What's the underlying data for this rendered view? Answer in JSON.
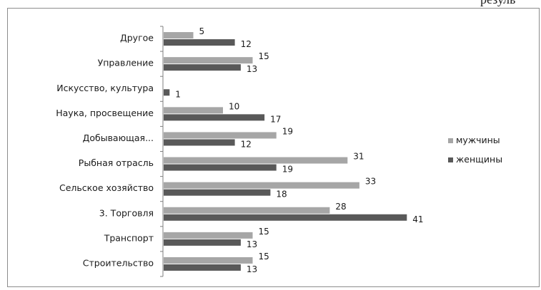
{
  "page": {
    "top_text": "резуль"
  },
  "chart_data": {
    "type": "bar",
    "orientation": "horizontal",
    "categories": [
      "Другое",
      "Управление",
      "Искусство, культура",
      "Наука, просвещение",
      "Добывающая...",
      "Рыбная отрасль",
      "Сельское хозяйство",
      "3. Торговля",
      "Транспорт",
      "Строительство"
    ],
    "series": [
      {
        "name": "мужчины",
        "color": "#a6a6a6",
        "values": [
          5,
          15,
          null,
          10,
          19,
          31,
          33,
          28,
          15,
          15
        ]
      },
      {
        "name": "женщины",
        "color": "#595959",
        "values": [
          12,
          13,
          1,
          17,
          12,
          19,
          18,
          41,
          13,
          13
        ]
      }
    ],
    "xlim": [
      0,
      45
    ],
    "grid": false,
    "legend_position": "right"
  }
}
